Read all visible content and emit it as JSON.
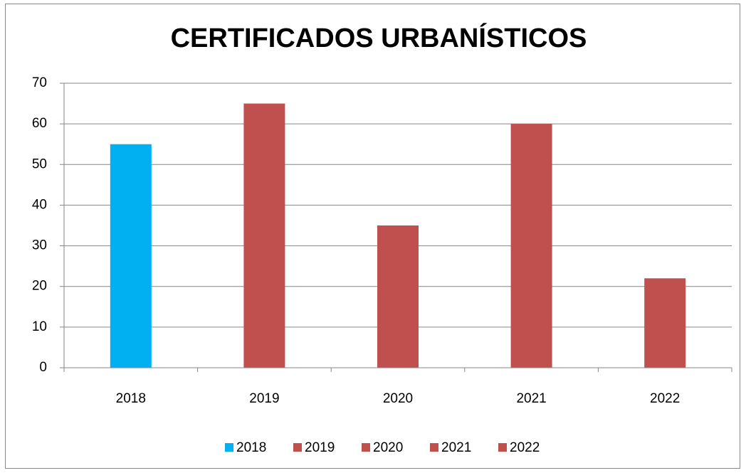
{
  "chart_data": {
    "type": "bar",
    "title": "CERTIFICADOS URBANÍSTICOS",
    "categories": [
      "2018",
      "2019",
      "2020",
      "2021",
      "2022"
    ],
    "series": [
      {
        "name": "2018",
        "color": "#00b0f0",
        "values": [
          55,
          null,
          null,
          null,
          null
        ]
      },
      {
        "name": "2019",
        "color": "#c0504d",
        "values": [
          null,
          65,
          null,
          null,
          null
        ]
      },
      {
        "name": "2020",
        "color": "#c0504d",
        "values": [
          null,
          null,
          35,
          null,
          null
        ]
      },
      {
        "name": "2021",
        "color": "#c0504d",
        "values": [
          null,
          null,
          null,
          60,
          null
        ]
      },
      {
        "name": "2022",
        "color": "#c0504d",
        "values": [
          null,
          null,
          null,
          null,
          22
        ]
      }
    ],
    "ylim": [
      0,
      70
    ],
    "yticks": [
      0,
      10,
      20,
      30,
      40,
      50,
      60,
      70
    ],
    "grid": true,
    "legend": "bottom"
  }
}
